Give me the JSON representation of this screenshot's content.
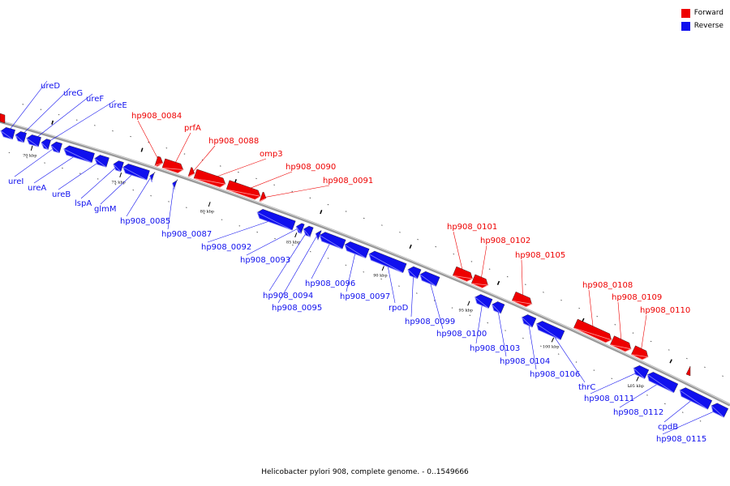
{
  "colors": {
    "forward": "#ee0000",
    "reverse": "#1010ee",
    "backbone": "#999999"
  },
  "legend": {
    "forward_label": "Forward",
    "reverse_label": "Reverse"
  },
  "caption": "Helicobacter pylori 908, complete genome. - 0..1549666",
  "scale_labels": [
    "70 kbp",
    "75 kbp",
    "80 kbp",
    "85 kbp",
    "90 kbp",
    "95 kbp",
    "100 kbp",
    "105 kbp"
  ],
  "genes": [
    {
      "name": "ureD",
      "strand": "reverse"
    },
    {
      "name": "ureG",
      "strand": "reverse"
    },
    {
      "name": "ureF",
      "strand": "reverse"
    },
    {
      "name": "ureE",
      "strand": "reverse"
    },
    {
      "name": "ureI",
      "strand": "reverse"
    },
    {
      "name": "ureA",
      "strand": "reverse"
    },
    {
      "name": "ureB",
      "strand": "reverse"
    },
    {
      "name": "lspA",
      "strand": "reverse"
    },
    {
      "name": "glmM",
      "strand": "reverse"
    },
    {
      "name": "hp908_0084",
      "strand": "forward"
    },
    {
      "name": "prfA",
      "strand": "forward"
    },
    {
      "name": "hp908_0085",
      "strand": "reverse"
    },
    {
      "name": "hp908_0087",
      "strand": "reverse"
    },
    {
      "name": "hp908_0088",
      "strand": "forward"
    },
    {
      "name": "omp3",
      "strand": "forward"
    },
    {
      "name": "hp908_0090",
      "strand": "forward"
    },
    {
      "name": "hp908_0091",
      "strand": "forward"
    },
    {
      "name": "hp908_0092",
      "strand": "reverse"
    },
    {
      "name": "hp908_0093",
      "strand": "reverse"
    },
    {
      "name": "hp908_0094",
      "strand": "reverse"
    },
    {
      "name": "hp908_0095",
      "strand": "reverse"
    },
    {
      "name": "hp908_0096",
      "strand": "reverse"
    },
    {
      "name": "hp908_0097",
      "strand": "reverse"
    },
    {
      "name": "rpoD",
      "strand": "reverse"
    },
    {
      "name": "hp908_0099",
      "strand": "reverse"
    },
    {
      "name": "hp908_0100",
      "strand": "reverse"
    },
    {
      "name": "hp908_0101",
      "strand": "forward"
    },
    {
      "name": "hp908_0102",
      "strand": "forward"
    },
    {
      "name": "hp908_0105",
      "strand": "forward"
    },
    {
      "name": "hp908_0103",
      "strand": "reverse"
    },
    {
      "name": "hp908_0104",
      "strand": "reverse"
    },
    {
      "name": "hp908_0106",
      "strand": "reverse"
    },
    {
      "name": "hp908_0108",
      "strand": "forward"
    },
    {
      "name": "hp908_0109",
      "strand": "forward"
    },
    {
      "name": "hp908_0110",
      "strand": "forward"
    },
    {
      "name": "thrC",
      "strand": "reverse"
    },
    {
      "name": "hp908_0111",
      "strand": "reverse"
    },
    {
      "name": "hp908_0112",
      "strand": "reverse"
    },
    {
      "name": "cpdB",
      "strand": "reverse"
    },
    {
      "name": "hp908_0115",
      "strand": "reverse"
    }
  ]
}
